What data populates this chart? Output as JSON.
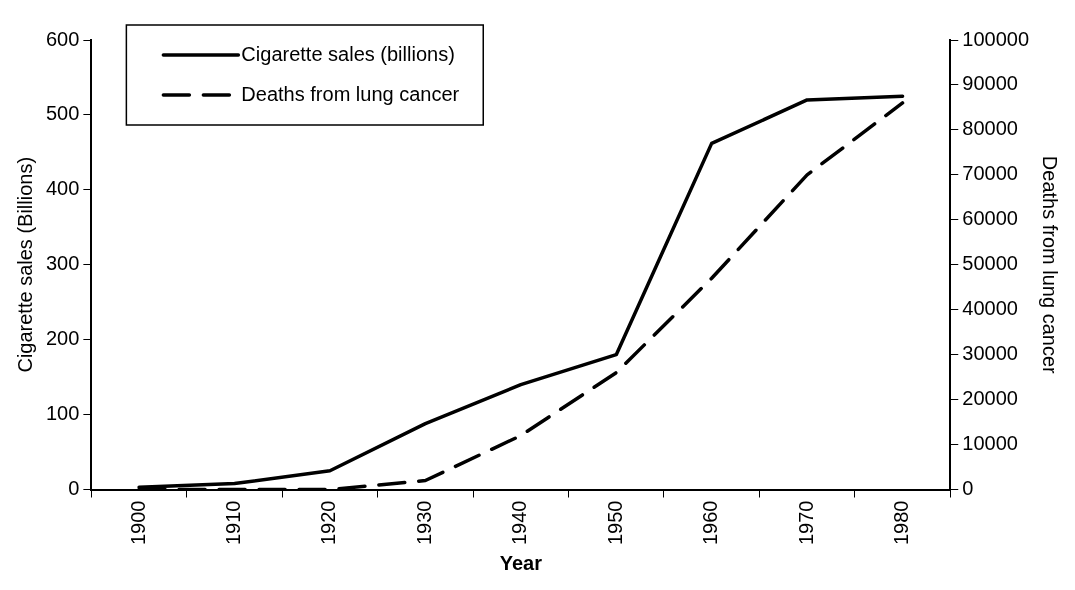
{
  "chart_data": {
    "type": "line",
    "xlabel": "Year",
    "ylabel": "Cigarette sales (Billions)",
    "y2label": "Deaths from lung cancer",
    "categories": [
      "1900",
      "1910",
      "1920",
      "1930",
      "1940",
      "1950",
      "1960",
      "1970",
      "1980"
    ],
    "series": [
      {
        "name": "Cigarette sales (billions)",
        "color": "#000000",
        "line_style": "solid",
        "values": [
          3,
          8,
          25,
          88,
          140,
          180,
          462,
          520,
          525
        ]
      },
      {
        "name": "Deaths from lung cancer",
        "color": "#000000",
        "line_style": "dashed",
        "axis": "y2",
        "values": [
          0,
          0,
          0,
          2000,
          12000,
          26000,
          47000,
          70000,
          86000
        ]
      }
    ],
    "ylim": [
      0,
      600
    ],
    "yticks": [
      0,
      100,
      200,
      300,
      400,
      500,
      600
    ],
    "y2lim": [
      0,
      100000
    ],
    "y2ticks": [
      0,
      10000,
      20000,
      30000,
      40000,
      50000,
      60000,
      70000,
      80000,
      90000,
      100000
    ],
    "grid": false,
    "legend": "top left",
    "marker": "none"
  }
}
